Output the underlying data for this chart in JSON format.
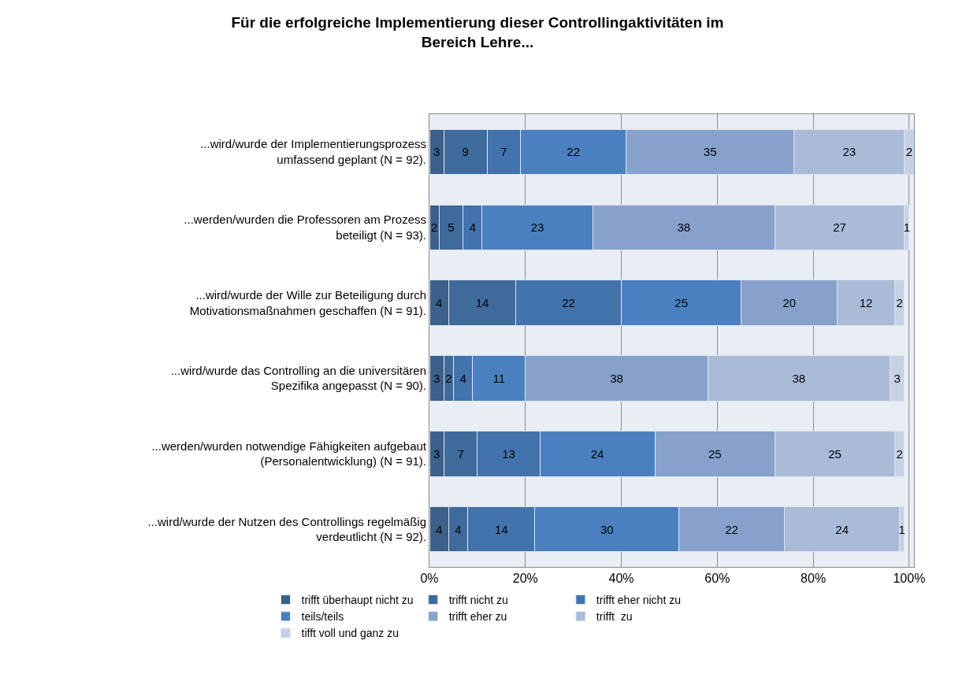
{
  "chart_data": {
    "type": "bar",
    "orientation": "horizontal",
    "stacked": true,
    "data_labels": true,
    "title": "Für die erfolgreiche Implementierung dieser Controllingaktivitäten im\nBereich Lehre...",
    "categories": [
      "...wird/wurde der Implementierungsprozess\numfassend geplant (N = 92).",
      "...werden/wurden die Professoren am Prozess\nbeteiligt (N = 93).",
      "...wird/wurde der Wille zur Beteiligung durch\nMotivationsmaßnahmen geschaffen (N = 91).",
      "...wird/wurde das Controlling an die universitären\nSpezifika angepasst (N = 90).",
      "...werden/wurden notwendige Fähigkeiten aufgebaut\n(Personalentwicklung) (N = 91).",
      "...wird/wurde der Nutzen des Controllings regelmäßig\nverdeutlicht (N = 92)."
    ],
    "series": [
      {
        "name": "trifft überhaupt nicht zu",
        "color": "#3c6089",
        "values": [
          3,
          2,
          4,
          3,
          3,
          4
        ]
      },
      {
        "name": "trifft nicht zu",
        "color": "#3f6a9c",
        "values": [
          9,
          5,
          14,
          2,
          7,
          4
        ]
      },
      {
        "name": "trifft eher nicht zu",
        "color": "#4373ad",
        "values": [
          7,
          4,
          22,
          4,
          13,
          14
        ]
      },
      {
        "name": "teils/teils",
        "color": "#4a80c0",
        "values": [
          22,
          23,
          25,
          11,
          24,
          30
        ]
      },
      {
        "name": "trifft eher zu",
        "color": "#86a2cc",
        "values": [
          35,
          38,
          20,
          38,
          25,
          22
        ]
      },
      {
        "name": "trifft  zu",
        "color": "#aabbd8",
        "values": [
          23,
          27,
          12,
          38,
          25,
          24
        ]
      },
      {
        "name": "tifft voll und ganz zu",
        "color": "#c6d1e6",
        "values": [
          2,
          1,
          2,
          3,
          2,
          1
        ]
      }
    ],
    "xlim": [
      0,
      101
    ],
    "xticks": [
      {
        "value": 0,
        "label": "0%"
      },
      {
        "value": 20,
        "label": "20%"
      },
      {
        "value": 40,
        "label": "40%"
      },
      {
        "value": 60,
        "label": "60%"
      },
      {
        "value": 80,
        "label": "80%"
      },
      {
        "value": 100,
        "label": "100%"
      }
    ],
    "grid": "x",
    "legend": "bottom"
  }
}
